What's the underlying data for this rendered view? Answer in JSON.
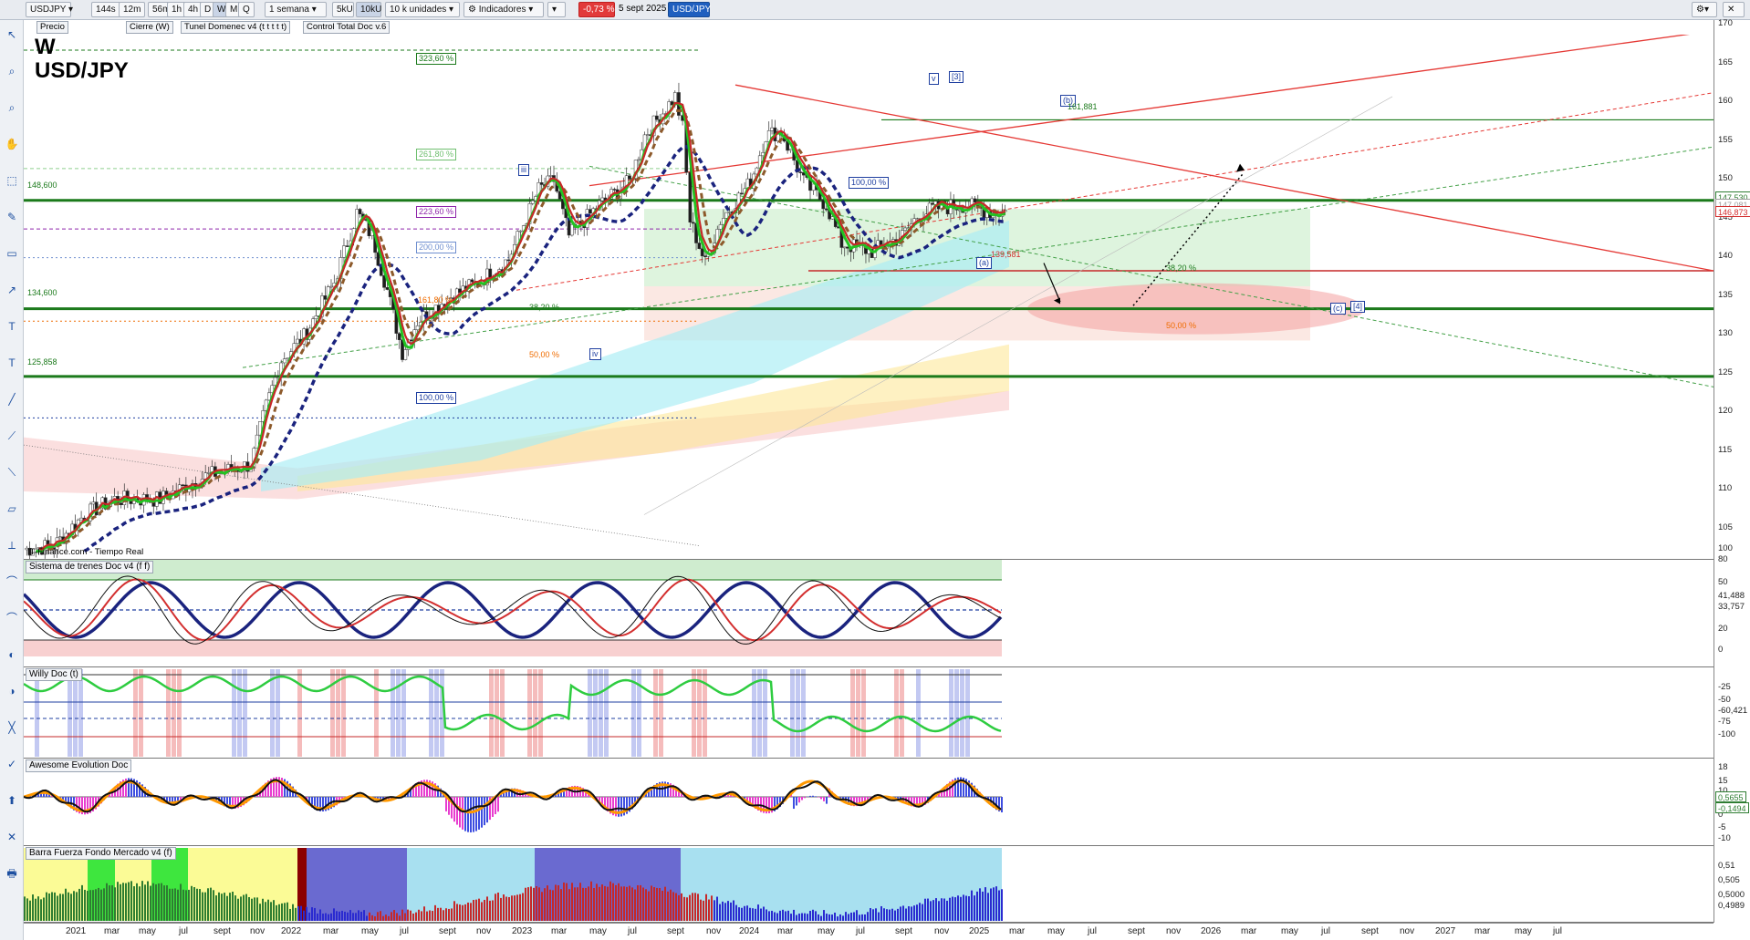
{
  "toolbar": {
    "symbol": "USDJPY",
    "timeframes": [
      "144s",
      "12m",
      "56m",
      "1h",
      "4h",
      "D",
      "W",
      "M",
      "Q"
    ],
    "active_timeframe": "W",
    "period_select": "1 semana",
    "units_buttons": [
      "5kU",
      "10kU"
    ],
    "active_units": "10kU",
    "units_select": "10 k unidades",
    "indicators_label": "Indicadores",
    "change_badge": "-0,73 %",
    "date": "5 sept 2025",
    "symbol_badge": "USD/JPY"
  },
  "indicator_chips": [
    "Precio",
    "Cierre (W)",
    "Tunel Domenec v4 (t t t t t)",
    "Control Total Doc v.6"
  ],
  "main": {
    "timeframe_letter": "W",
    "pair": "USD/JPY",
    "source": "IT-Finance.com - Tiempo Real",
    "price_axis": [
      "170",
      "165",
      "160",
      "155",
      "150",
      "145",
      "140",
      "135",
      "130",
      "125",
      "120",
      "115",
      "110",
      "105"
    ],
    "price_tags": [
      {
        "text": "147,530",
        "color": "#2e7d32"
      },
      {
        "text": "147,081",
        "color": "#9e9e9e"
      },
      {
        "text": "146,873",
        "color": "#d32f2f"
      }
    ],
    "level_labels": [
      {
        "text": "148,600",
        "color": "#1b7a1b"
      },
      {
        "text": "134,600",
        "color": "#1b7a1b"
      },
      {
        "text": "125,858",
        "color": "#1b7a1b"
      }
    ],
    "fib_labels": [
      {
        "text": "323,60 %",
        "color": "#1b7a1b"
      },
      {
        "text": "261,80 %",
        "color": "#6fbf6f"
      },
      {
        "text": "223,60 %",
        "color": "#8e24aa"
      },
      {
        "text": "200,00 %",
        "color": "#6f8fcf"
      },
      {
        "text": "161,80 %",
        "color": "#ef6c00"
      },
      {
        "text": "100,00 %",
        "color": "#1f3fa0"
      },
      {
        "text": "50,00 %",
        "color": "#ef6c00"
      },
      {
        "text": "100,00 %",
        "color": "#1f3fa0"
      },
      {
        "text": "38,20 %",
        "color": "#1b7a1b"
      },
      {
        "text": "50,00 %",
        "color": "#ef6c00"
      },
      {
        "text": "38,20 %",
        "color": "#1b7a1b"
      }
    ],
    "wave_labels": [
      "iii",
      "iv",
      "v",
      "[3]",
      "(b)",
      "(a)",
      "(c)",
      "[4]"
    ],
    "price_marks": [
      "161,881",
      "139,581"
    ]
  },
  "panes": [
    {
      "title": "Sistema de trenes Doc v4 (f f)",
      "axis": [
        "100",
        "80",
        "50",
        "41,488",
        "33,757",
        "20",
        "0"
      ]
    },
    {
      "title": "Willy Doc (t)",
      "axis": [
        "-25",
        "-50",
        "-60,421",
        "-75",
        "-100"
      ]
    },
    {
      "title": "Awesome Evolution Doc",
      "axis": [
        "18",
        "15",
        "10",
        "5",
        "0",
        "-5",
        "-10"
      ],
      "tags": [
        "0,5655",
        "-0,1494"
      ]
    },
    {
      "title": "Barra Fuerza Fondo Mercado v4 (f)",
      "axis": [
        "0,51",
        "0,505",
        "0,5000",
        "0,4989"
      ]
    }
  ],
  "time_axis": [
    "2021",
    "mar",
    "may",
    "jul",
    "sept",
    "nov",
    "2022",
    "mar",
    "may",
    "jul",
    "sept",
    "nov",
    "2023",
    "mar",
    "may",
    "jul",
    "sept",
    "nov",
    "2024",
    "mar",
    "may",
    "jul",
    "sept",
    "nov",
    "2025",
    "mar",
    "may",
    "jul",
    "sept",
    "nov",
    "2026",
    "mar",
    "may",
    "jul",
    "sept",
    "nov",
    "2027",
    "mar",
    "may",
    "jul"
  ],
  "colors": {
    "support_green": "#1b7a1b",
    "resistance_red": "#d32f2f",
    "ema_blue": "#1a237e",
    "trend_green": "#22c322"
  }
}
